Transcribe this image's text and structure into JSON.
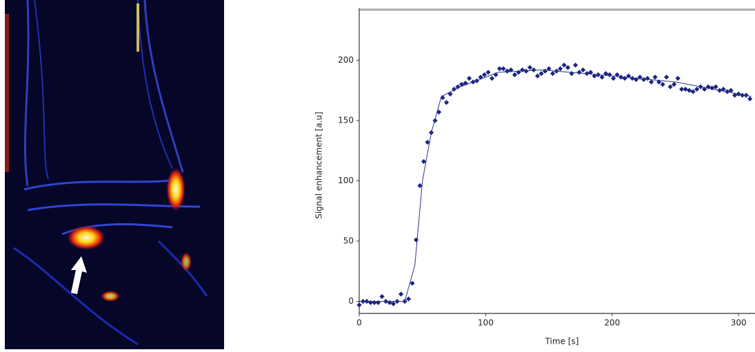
{
  "chart_data": {
    "type": "scatter",
    "xlabel": "Time [s]",
    "ylabel": "Signal enhancement [a.u]",
    "xlim": [
      0,
      313
    ],
    "ylim": [
      -10,
      242
    ],
    "xticks": [
      0,
      100,
      200,
      300
    ],
    "yticks": [
      0,
      50,
      100,
      150,
      200
    ],
    "grid": false,
    "series": [
      {
        "kind": "marker",
        "color": "#1c2580",
        "x": [
          0,
          3,
          6,
          9,
          12,
          15,
          18,
          21,
          24,
          27,
          30,
          33,
          36,
          39,
          42,
          45,
          48,
          51,
          54,
          57,
          60,
          63,
          66,
          69,
          72,
          75,
          78,
          81,
          84,
          87,
          90,
          93,
          96,
          99,
          102,
          105,
          108,
          111,
          114,
          117,
          120,
          123,
          126,
          129,
          132,
          135,
          138,
          141,
          144,
          147,
          150,
          153,
          156,
          159,
          162,
          165,
          168,
          171,
          174,
          177,
          180,
          183,
          186,
          189,
          192,
          195,
          198,
          201,
          204,
          207,
          210,
          213,
          216,
          219,
          222,
          225,
          228,
          231,
          234,
          237,
          240,
          243,
          246,
          249,
          252,
          255,
          258,
          261,
          264,
          267,
          270,
          273,
          276,
          279,
          282,
          285,
          288,
          291,
          294,
          297,
          300,
          303,
          306,
          309
        ],
        "values": [
          -3,
          0,
          0,
          -1,
          -1,
          -1,
          4,
          0,
          -1,
          -2,
          0,
          6,
          0,
          2,
          15,
          51,
          96,
          116,
          132,
          140,
          150,
          157,
          169,
          165,
          172,
          176,
          178,
          180,
          181,
          185,
          182,
          183,
          186,
          188,
          190,
          185,
          188,
          193,
          193,
          191,
          192,
          188,
          190,
          192,
          191,
          194,
          192,
          187,
          189,
          191,
          193,
          189,
          191,
          193,
          196,
          194,
          189,
          196,
          190,
          192,
          189,
          190,
          187,
          188,
          186,
          189,
          188,
          185,
          188,
          186,
          185,
          187,
          185,
          184,
          186,
          184,
          185,
          182,
          186,
          182,
          180,
          186,
          178,
          180,
          185,
          176,
          176,
          175,
          174,
          176,
          178,
          176,
          178,
          177,
          178,
          175,
          176,
          174,
          175,
          171,
          172,
          171,
          171,
          168
        ]
      },
      {
        "kind": "line",
        "color": "#2a3290",
        "x": [
          0,
          36,
          44,
          50,
          57,
          65,
          80,
          110,
          145,
          200,
          250,
          310
        ],
        "values": [
          0,
          0,
          30,
          100,
          140,
          170,
          178,
          190,
          192,
          187,
          182,
          170
        ]
      }
    ]
  }
}
